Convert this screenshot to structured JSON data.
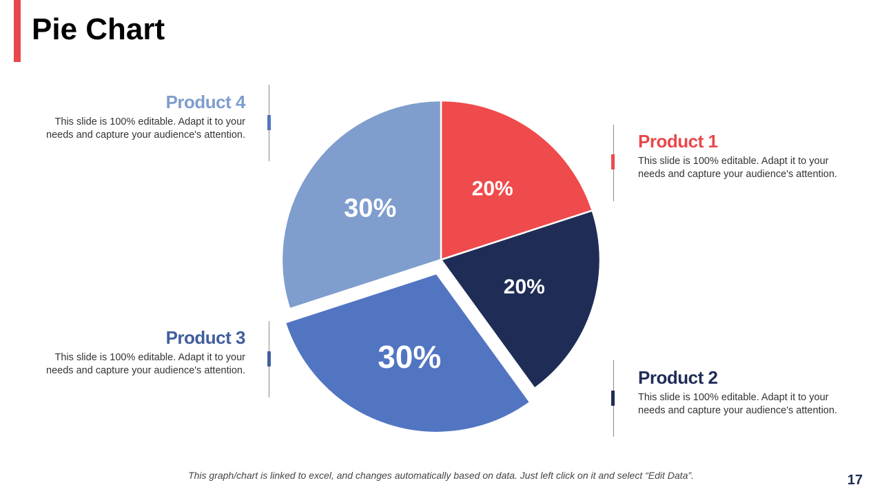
{
  "title": "Pie Chart",
  "footer": "This graph/chart is linked to excel, and changes automatically based on data. Just left click on it and select “Edit Data”.",
  "page_number": "17",
  "chart_data": {
    "type": "pie",
    "categories": [
      "Product 1",
      "Product 2",
      "Product 3",
      "Product 4"
    ],
    "values": [
      20,
      20,
      30,
      30
    ],
    "labels": [
      "20%",
      "20%",
      "30%",
      "30%"
    ],
    "colors": [
      "#EF4B4C",
      "#1F2D56",
      "#5275C2",
      "#7F9DCD"
    ],
    "exploded": "Product 3"
  },
  "products": [
    {
      "name": "Product 1",
      "desc": "This slide is 100% editable. Adapt it to your needs and capture your audience's attention."
    },
    {
      "name": "Product 2",
      "desc": "This slide is 100% editable. Adapt it to your needs and capture your audience's attention."
    },
    {
      "name": "Product 3",
      "desc": "This slide is 100% editable. Adapt it to your needs and capture your audience's attention."
    },
    {
      "name": "Product 4",
      "desc": "This slide is 100% editable. Adapt it to your needs and capture your audience's attention."
    }
  ]
}
